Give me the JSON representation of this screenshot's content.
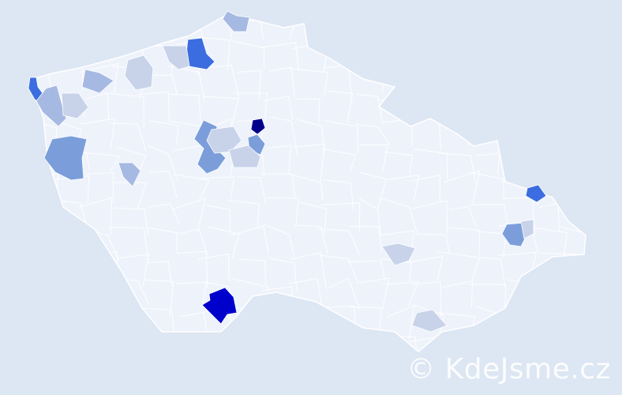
{
  "watermark": "© KdeJsme.cz",
  "colors": {
    "background": "#dde6f3",
    "base_region": "#eef2fb",
    "border": "#ffffff",
    "levels": [
      "#c8d3ea",
      "#a6b9e3",
      "#7b9edb",
      "#3b6de0",
      "#0000cc",
      "#00008b"
    ]
  }
}
